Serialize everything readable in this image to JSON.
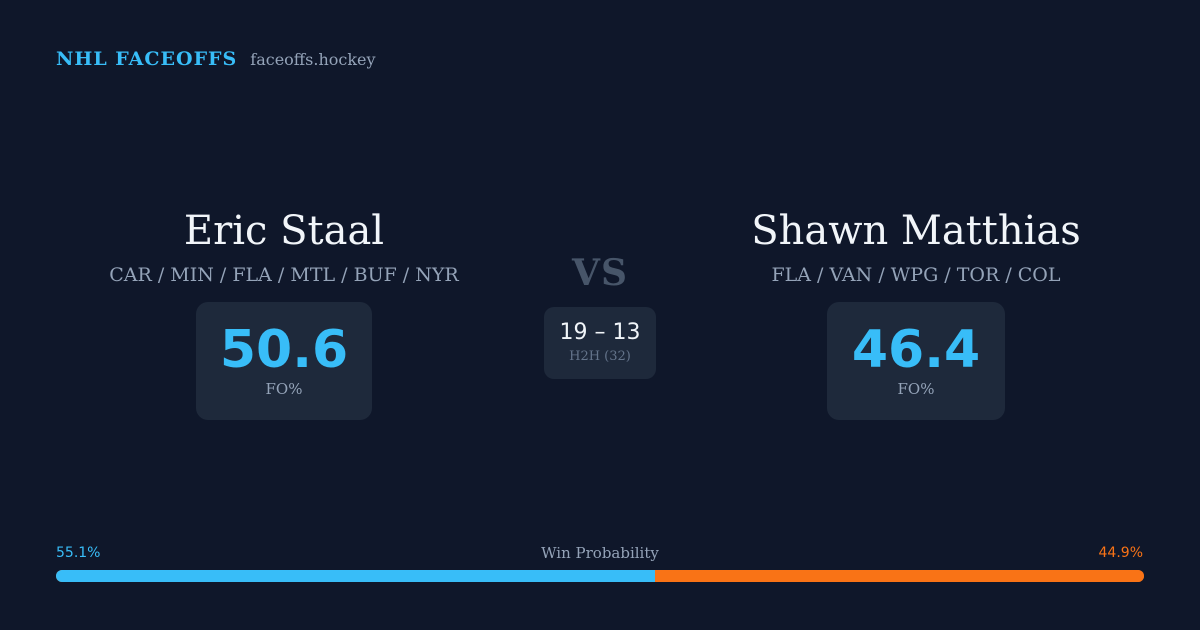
{
  "brand": {
    "title": "NHL FACEOFFS",
    "site": "faceoffs.hockey"
  },
  "player_left": {
    "name": "Eric Staal",
    "teams": "CAR / MIN / FLA / MTL / BUF / NYR",
    "fo_value": "50.6",
    "fo_label": "FO%"
  },
  "player_right": {
    "name": "Shawn Matthias",
    "teams": "FLA / VAN / WPG / TOR / COL",
    "fo_value": "46.4",
    "fo_label": "FO%"
  },
  "versus": {
    "label": "VS",
    "h2h_score": "19 – 13",
    "h2h_label": "H2H (32)"
  },
  "win_probability": {
    "title": "Win Probability",
    "left_label": "55.1%",
    "right_label": "44.9%",
    "left_fraction": 0.551,
    "right_fraction": 0.449
  },
  "colors": {
    "background": "#0f172a",
    "card": "#1e293b",
    "accent_left": "#38bdf8",
    "accent_right": "#f97316",
    "muted": "#94a3b8"
  }
}
